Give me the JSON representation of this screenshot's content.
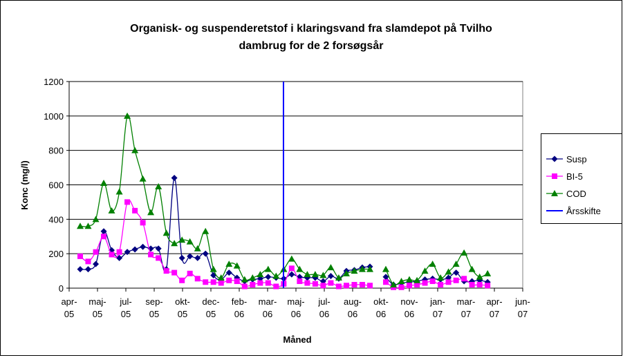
{
  "chart_data": {
    "type": "line",
    "title": [
      "Organisk- og suspenderetstof i klaringsvand fra slamdepot på Tvilho",
      "dambrug for de 2 forsøgsår"
    ],
    "xlabel": "Måned",
    "ylabel": "Konc (mg/l)",
    "xlim": [
      0,
      16
    ],
    "xticks": [
      {
        "value": 0,
        "label": "apr-05"
      },
      {
        "value": 1,
        "label": "maj-05"
      },
      {
        "value": 2,
        "label": "jul-05"
      },
      {
        "value": 3,
        "label": "sep-05"
      },
      {
        "value": 4,
        "label": "okt-05"
      },
      {
        "value": 5,
        "label": "dec-05"
      },
      {
        "value": 6,
        "label": "feb-06"
      },
      {
        "value": 7,
        "label": "mar-06"
      },
      {
        "value": 8,
        "label": "maj-06"
      },
      {
        "value": 9,
        "label": "jul-06"
      },
      {
        "value": 10,
        "label": "aug-06"
      },
      {
        "value": 11,
        "label": "okt-06"
      },
      {
        "value": 12,
        "label": "nov-06"
      },
      {
        "value": 13,
        "label": "jan-07"
      },
      {
        "value": 14,
        "label": "mar-07"
      },
      {
        "value": 15,
        "label": "apr-07"
      },
      {
        "value": 16,
        "label": "jun-07"
      }
    ],
    "ylim": [
      0,
      1200
    ],
    "yticks": [
      0,
      200,
      400,
      600,
      800,
      1000,
      1200
    ],
    "grid": true,
    "legend": "right",
    "x": [
      0.39,
      0.67,
      0.94,
      1.22,
      1.5,
      1.77,
      2.05,
      2.32,
      2.6,
      2.88,
      3.15,
      3.43,
      3.71,
      3.98,
      4.26,
      4.53,
      4.81,
      5.09,
      5.36,
      5.64,
      5.92,
      6.19,
      6.47,
      6.74,
      7.02,
      7.3,
      7.57,
      7.85,
      8.13,
      8.4,
      8.68,
      8.96,
      9.23,
      9.51,
      9.78,
      10.06,
      10.34,
      10.61,
      10.89,
      11.17,
      11.44,
      11.72,
      12.0,
      12.27,
      12.55,
      12.82,
      13.1,
      13.38,
      13.65,
      13.93,
      14.21,
      14.48,
      14.76
    ],
    "series": [
      {
        "name": "Susp",
        "color": "#000080",
        "marker": "diamond",
        "values": [
          110,
          110,
          140,
          330,
          220,
          175,
          210,
          225,
          240,
          230,
          230,
          110,
          640,
          175,
          185,
          175,
          200,
          75,
          50,
          90,
          60,
          40,
          50,
          55,
          65,
          60,
          55,
          80,
          65,
          60,
          60,
          40,
          70,
          55,
          100,
          105,
          120,
          125,
          null,
          65,
          20,
          30,
          35,
          40,
          50,
          55,
          50,
          60,
          90,
          40,
          40,
          45,
          35
        ]
      },
      {
        "name": "BI-5",
        "color": "#ff00ff",
        "marker": "square",
        "values": [
          185,
          155,
          210,
          300,
          195,
          210,
          500,
          450,
          380,
          195,
          175,
          100,
          90,
          45,
          85,
          55,
          35,
          35,
          30,
          45,
          40,
          10,
          20,
          30,
          30,
          10,
          25,
          115,
          40,
          30,
          25,
          15,
          30,
          10,
          15,
          20,
          20,
          15,
          null,
          35,
          5,
          5,
          15,
          20,
          30,
          40,
          20,
          35,
          45,
          55,
          20,
          20,
          15
        ]
      },
      {
        "name": "COD",
        "color": "#008000",
        "marker": "triangle",
        "values": [
          360,
          360,
          400,
          610,
          450,
          560,
          1000,
          800,
          635,
          440,
          590,
          320,
          260,
          280,
          270,
          230,
          330,
          110,
          60,
          140,
          130,
          50,
          60,
          80,
          110,
          70,
          110,
          170,
          110,
          80,
          80,
          75,
          120,
          60,
          85,
          100,
          110,
          110,
          null,
          110,
          20,
          40,
          50,
          45,
          100,
          140,
          60,
          95,
          140,
          205,
          110,
          65,
          85
        ]
      }
    ],
    "vline": {
      "name": "Årsskifte",
      "color": "#0000ff",
      "x": 7.56
    }
  }
}
